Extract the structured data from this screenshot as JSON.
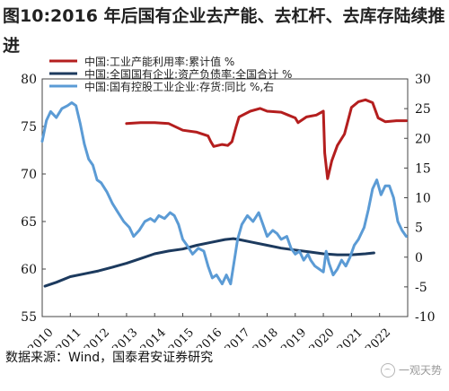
{
  "title": "图10:2016 年后国有企业去产能、去杠杆、去库存陆续推进",
  "source": "数据来源：Wind，国泰君安证券研究",
  "watermark": "一观天势",
  "chart_data": {
    "type": "line",
    "left_axis": {
      "min": 55,
      "max": 80,
      "ticks": [
        55,
        60,
        65,
        70,
        75,
        80
      ]
    },
    "right_axis": {
      "min": -10,
      "max": 30,
      "ticks": [
        -10,
        -5,
        0,
        5,
        10,
        15,
        20,
        25,
        30
      ]
    },
    "x_axis": {
      "min": 2010.0,
      "max": 2023.0,
      "ticks": [
        "2010",
        "2011",
        "2012",
        "2013",
        "2014",
        "2015",
        "2016",
        "2017",
        "2018",
        "2019",
        "2020",
        "2021",
        "2022"
      ]
    },
    "grid": false,
    "legend_position": "top-left",
    "series": [
      {
        "name": "中国:工业产能利用率:累计值 %",
        "axis": "left",
        "color": "#b41e1e",
        "points": [
          [
            2013.0,
            75.3
          ],
          [
            2013.5,
            75.4
          ],
          [
            2014.0,
            75.4
          ],
          [
            2014.5,
            75.3
          ],
          [
            2015.0,
            74.6
          ],
          [
            2015.5,
            74.4
          ],
          [
            2015.9,
            74.0
          ],
          [
            2016.0,
            73.4
          ],
          [
            2016.1,
            72.9
          ],
          [
            2016.4,
            73.1
          ],
          [
            2016.6,
            73.0
          ],
          [
            2016.75,
            73.4
          ],
          [
            2016.9,
            75.0
          ],
          [
            2017.0,
            76.0
          ],
          [
            2017.4,
            76.6
          ],
          [
            2017.75,
            76.9
          ],
          [
            2018.0,
            76.6
          ],
          [
            2018.5,
            76.5
          ],
          [
            2018.75,
            76.2
          ],
          [
            2019.0,
            75.9
          ],
          [
            2019.1,
            75.4
          ],
          [
            2019.4,
            76.0
          ],
          [
            2019.75,
            76.2
          ],
          [
            2020.0,
            76.6
          ],
          [
            2020.05,
            72.2
          ],
          [
            2020.15,
            69.5
          ],
          [
            2020.3,
            71.4
          ],
          [
            2020.5,
            73.0
          ],
          [
            2020.75,
            74.2
          ],
          [
            2021.0,
            77.0
          ],
          [
            2021.25,
            77.6
          ],
          [
            2021.5,
            77.8
          ],
          [
            2021.75,
            77.5
          ],
          [
            2021.95,
            75.9
          ],
          [
            2022.2,
            75.5
          ],
          [
            2022.6,
            75.6
          ],
          [
            2022.95,
            75.6
          ]
        ]
      },
      {
        "name": "中国:全国国有企业:资产负债率:全国合计 %",
        "axis": "left",
        "color": "#1c3a5e",
        "points": [
          [
            2010.1,
            58.2
          ],
          [
            2010.5,
            58.6
          ],
          [
            2011.0,
            59.2
          ],
          [
            2011.5,
            59.5
          ],
          [
            2012.0,
            59.8
          ],
          [
            2012.5,
            60.2
          ],
          [
            2013.0,
            60.6
          ],
          [
            2013.5,
            61.1
          ],
          [
            2014.0,
            61.6
          ],
          [
            2014.5,
            61.9
          ],
          [
            2015.0,
            62.1
          ],
          [
            2015.5,
            62.5
          ],
          [
            2016.0,
            62.8
          ],
          [
            2016.5,
            63.1
          ],
          [
            2016.8,
            63.2
          ],
          [
            2017.0,
            63.1
          ],
          [
            2017.5,
            62.8
          ],
          [
            2018.0,
            62.5
          ],
          [
            2018.5,
            62.2
          ],
          [
            2019.0,
            62.0
          ],
          [
            2019.5,
            61.8
          ],
          [
            2020.0,
            61.6
          ],
          [
            2020.5,
            61.5
          ],
          [
            2021.0,
            61.5
          ],
          [
            2021.5,
            61.6
          ],
          [
            2021.8,
            61.7
          ]
        ]
      },
      {
        "name": "中国:国有控股工业企业:存货:同比 %,右",
        "axis": "right",
        "color": "#5b9bd5",
        "points": [
          [
            2010.0,
            19.5
          ],
          [
            2010.15,
            23.0
          ],
          [
            2010.3,
            24.5
          ],
          [
            2010.5,
            23.5
          ],
          [
            2010.7,
            25.0
          ],
          [
            2010.9,
            25.5
          ],
          [
            2011.05,
            26.0
          ],
          [
            2011.2,
            25.5
          ],
          [
            2011.35,
            22.5
          ],
          [
            2011.5,
            19.0
          ],
          [
            2011.65,
            16.5
          ],
          [
            2011.8,
            15.5
          ],
          [
            2011.95,
            13.0
          ],
          [
            2012.1,
            12.5
          ],
          [
            2012.3,
            11.0
          ],
          [
            2012.5,
            9.0
          ],
          [
            2012.7,
            7.5
          ],
          [
            2012.9,
            6.0
          ],
          [
            2013.1,
            5.0
          ],
          [
            2013.25,
            3.5
          ],
          [
            2013.45,
            4.5
          ],
          [
            2013.65,
            6.0
          ],
          [
            2013.85,
            6.5
          ],
          [
            2014.0,
            6.0
          ],
          [
            2014.15,
            7.0
          ],
          [
            2014.35,
            6.5
          ],
          [
            2014.55,
            7.5
          ],
          [
            2014.7,
            7.0
          ],
          [
            2014.85,
            5.5
          ],
          [
            2015.0,
            3.0
          ],
          [
            2015.15,
            2.0
          ],
          [
            2015.35,
            0.5
          ],
          [
            2015.55,
            1.5
          ],
          [
            2015.75,
            1.0
          ],
          [
            2015.9,
            -1.5
          ],
          [
            2016.05,
            -3.5
          ],
          [
            2016.2,
            -3.0
          ],
          [
            2016.4,
            -4.5
          ],
          [
            2016.55,
            -3.0
          ],
          [
            2016.7,
            -4.5
          ],
          [
            2016.85,
            0.0
          ],
          [
            2016.95,
            3.0
          ],
          [
            2017.1,
            5.5
          ],
          [
            2017.3,
            7.0
          ],
          [
            2017.5,
            6.0
          ],
          [
            2017.7,
            7.5
          ],
          [
            2017.85,
            5.5
          ],
          [
            2018.0,
            3.5
          ],
          [
            2018.2,
            4.5
          ],
          [
            2018.35,
            4.0
          ],
          [
            2018.5,
            3.0
          ],
          [
            2018.7,
            3.5
          ],
          [
            2018.85,
            1.5
          ],
          [
            2019.0,
            0.5
          ],
          [
            2019.15,
            1.0
          ],
          [
            2019.3,
            -0.5
          ],
          [
            2019.45,
            0.5
          ],
          [
            2019.55,
            -0.5
          ],
          [
            2019.7,
            -1.5
          ],
          [
            2019.85,
            -2.0
          ],
          [
            2020.0,
            -2.5
          ],
          [
            2020.1,
            1.0
          ],
          [
            2020.2,
            -1.0
          ],
          [
            2020.35,
            -3.0
          ],
          [
            2020.5,
            -2.0
          ],
          [
            2020.65,
            -0.5
          ],
          [
            2020.8,
            -1.5
          ],
          [
            2020.95,
            0.0
          ],
          [
            2021.1,
            2.0
          ],
          [
            2021.25,
            3.0
          ],
          [
            2021.45,
            5.0
          ],
          [
            2021.6,
            8.0
          ],
          [
            2021.75,
            11.5
          ],
          [
            2021.9,
            13.0
          ],
          [
            2022.05,
            10.5
          ],
          [
            2022.2,
            12.0
          ],
          [
            2022.35,
            12.0
          ],
          [
            2022.5,
            10.0
          ],
          [
            2022.65,
            6.0
          ],
          [
            2022.8,
            4.5
          ],
          [
            2022.95,
            3.5
          ]
        ]
      }
    ]
  }
}
